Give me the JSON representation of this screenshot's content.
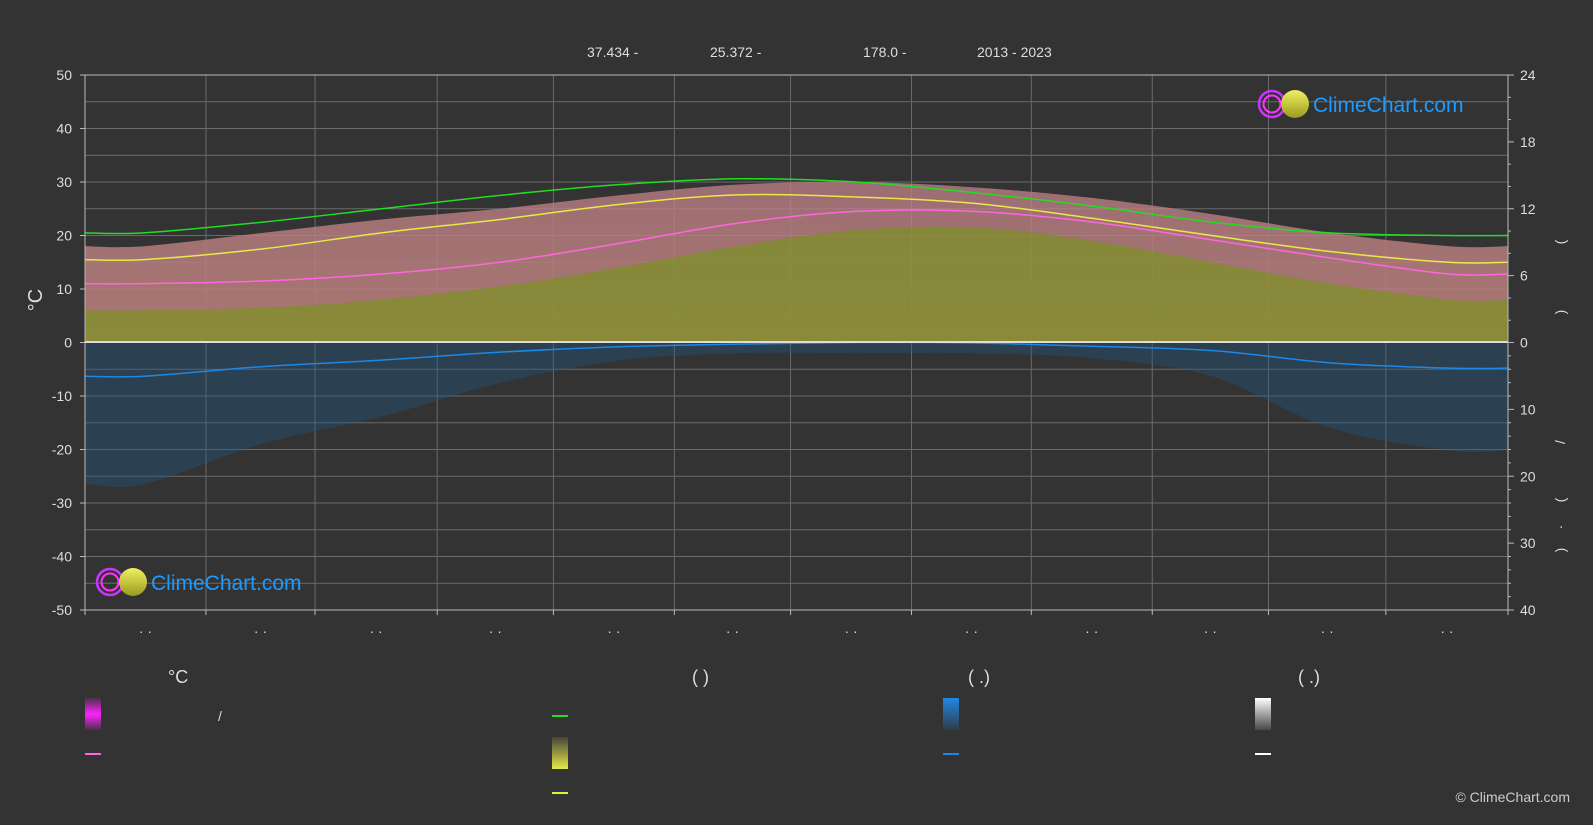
{
  "header": {
    "items": [
      "37.434 -",
      "25.372 -",
      "178.0 -",
      "2013 - 2023"
    ]
  },
  "brand": {
    "logo_text": "ClimeChart.com",
    "copyright": "© ClimeChart.com"
  },
  "chart_data": {
    "type": "area",
    "left_axis": {
      "label": "°C",
      "ylim": [
        -50,
        50
      ],
      "ticks": [
        50,
        40,
        30,
        20,
        10,
        0,
        -10,
        -20,
        -30,
        -40,
        -50
      ]
    },
    "right_axis_top": {
      "ylim": [
        0,
        24
      ],
      "ticks": [
        24,
        18,
        12,
        6,
        0
      ]
    },
    "right_axis_bottom": {
      "ylim": [
        0,
        40
      ],
      "ticks": [
        0,
        10,
        20,
        30,
        40
      ]
    },
    "right_axis_glyphs": [
      "(",
      ")",
      "/",
      "(",
      "·",
      ")"
    ],
    "month_tick_labels": [
      "· ·",
      "· ·",
      "· ·",
      "· ·",
      "· ·",
      "· ·",
      "· ·",
      "· ·",
      "· ·",
      "· ·",
      "· ·",
      "· ·"
    ],
    "grid": true,
    "x": [
      0.5,
      1.5,
      2.5,
      3.5,
      4.5,
      5.5,
      6.5,
      7.5,
      8.5,
      9.5,
      10.5,
      11.5
    ],
    "series": [
      {
        "key": "daylight",
        "color": "#22dd22",
        "values": [
          20.5,
          22.5,
          25.0,
          27.5,
          29.5,
          30.6,
          30.0,
          28.0,
          25.5,
          22.5,
          20.5,
          20.0
        ]
      },
      {
        "key": "sunshine",
        "color": "#e8e84a",
        "values": [
          15.5,
          17.5,
          20.5,
          23.0,
          25.8,
          27.6,
          27.2,
          26.0,
          23.2,
          20.0,
          17.0,
          15.0
        ]
      },
      {
        "key": "mean_temp",
        "color": "#ff66dd",
        "values": [
          11.0,
          11.5,
          12.8,
          15.0,
          18.5,
          22.3,
          24.5,
          24.5,
          22.5,
          19.2,
          15.8,
          12.8
        ]
      },
      {
        "key": "precipitation",
        "color": "#1e88e5",
        "values": [
          -6.3,
          -4.5,
          -3.3,
          -1.8,
          -0.8,
          -0.3,
          0.0,
          -0.1,
          -0.7,
          -1.5,
          -3.8,
          -4.8
        ]
      }
    ],
    "max_temp_band": [
      18.0,
      20.5,
      23.0,
      25.0,
      27.5,
      29.5,
      30.0,
      29.0,
      27.0,
      24.0,
      20.5,
      18.0
    ],
    "min_temp_band": [
      6.0,
      6.5,
      8.0,
      10.5,
      14.0,
      18.0,
      21.0,
      21.5,
      19.0,
      15.0,
      11.0,
      8.0
    ]
  },
  "legend": {
    "columns": [
      {
        "head": "°C",
        "rows": [
          {
            "swatch": "magenta-gradient",
            "text": "/"
          },
          {
            "swatch": "pink-line",
            "text": ""
          }
        ]
      },
      {
        "head": "(          )",
        "rows": [
          {
            "swatch": "green-line",
            "text": ""
          },
          {
            "swatch": "yellow-gradient",
            "text": ""
          },
          {
            "swatch": "yellow-line",
            "text": ""
          }
        ]
      },
      {
        "head": "(   .)",
        "rows": [
          {
            "swatch": "blue-gradient",
            "text": ""
          },
          {
            "swatch": "blue-line",
            "text": ""
          }
        ]
      },
      {
        "head": "(   .)",
        "rows": [
          {
            "swatch": "white-gradient",
            "text": ""
          },
          {
            "swatch": "white-line",
            "text": ""
          }
        ]
      }
    ]
  },
  "colors": {
    "background": "#333333",
    "grid": "#6a6a6a",
    "accent_blue": "#1e9bff",
    "magenta": "#ff22ff",
    "yellow": "#e8e84a"
  }
}
